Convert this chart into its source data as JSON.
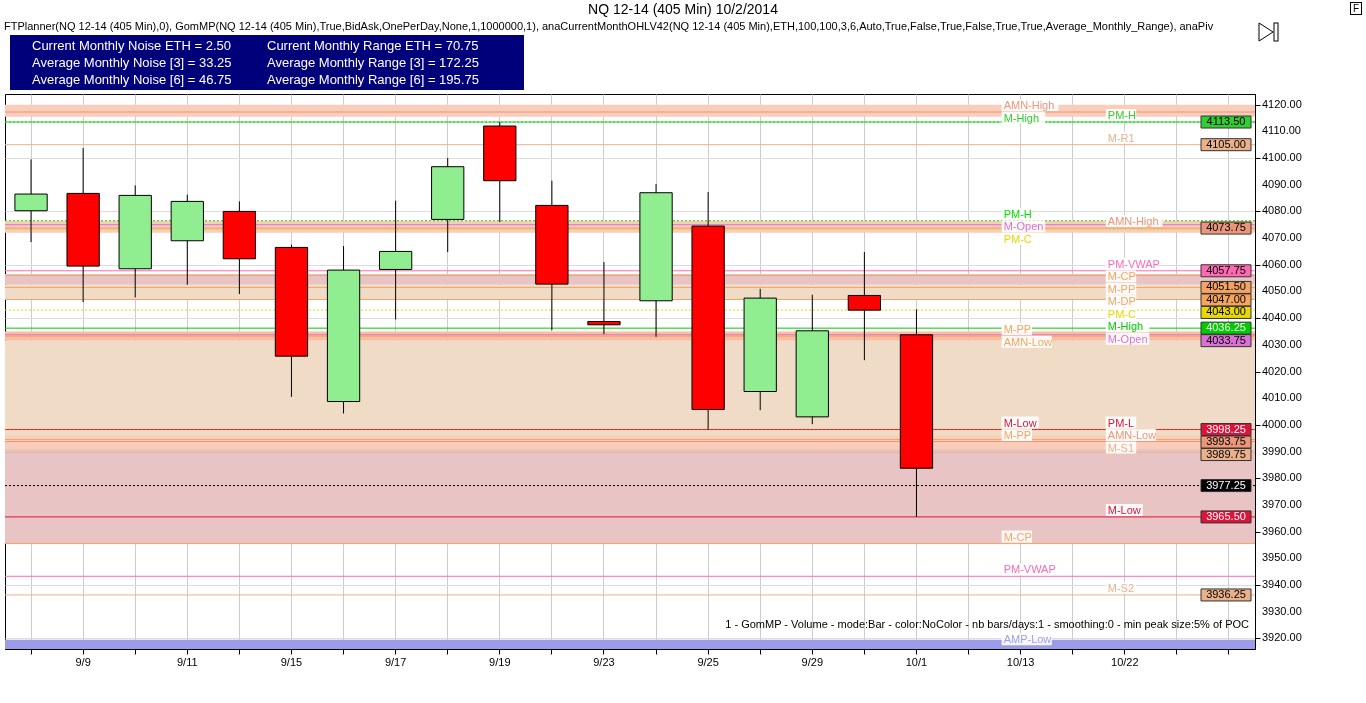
{
  "chart_data": {
    "type": "candlestick",
    "title": "NQ 12-14 (405 Min)  10/2/2014",
    "subtitle": "FTPlanner(NQ 12-14 (405 Min),0), GomMP(NQ 12-14 (405 Min),True,BidAsk,OnePerDay,None,1,1000000,1), anaCurrentMonthOHLV42(NQ 12-14 (405 Min),ETH,100,100,3,6,Auto,True,False,True,False,True,True,Average_Monthly_Range), anaPiv",
    "categories": [
      null,
      "9/9",
      null,
      "9/11",
      null,
      "9/15",
      null,
      "9/17",
      null,
      "9/19",
      null,
      "9/23",
      null,
      "9/25",
      null,
      "9/29",
      null,
      "10/1",
      null,
      "10/13",
      null,
      "10/22",
      null,
      null
    ],
    "ohlc": [
      [
        4080.25,
        4099.5,
        4068.5,
        4086.5
      ],
      [
        4086.75,
        4103.75,
        4046,
        4059.5
      ],
      [
        4058.5,
        4089.75,
        4047.75,
        4086
      ],
      [
        4069,
        4086.25,
        4052.5,
        4083.75
      ],
      [
        4080,
        4083.75,
        4049,
        4062.25
      ],
      [
        4066.5,
        4067.5,
        4010.5,
        4025.75
      ],
      [
        4008.75,
        4067,
        4004.25,
        4058
      ],
      [
        4058.25,
        4084,
        4039.5,
        4065
      ],
      [
        4077,
        4100,
        4064.75,
        4096.75
      ],
      [
        4112,
        4113.5,
        4076,
        4091.5
      ],
      [
        4082.25,
        4091.5,
        4035.5,
        4052.75
      ],
      [
        4038.75,
        4061,
        4034,
        4037.5
      ],
      [
        4046.5,
        4090.25,
        4033,
        4087
      ],
      [
        4074.5,
        4087.25,
        3998.25,
        4005.75
      ],
      [
        4012.5,
        4051,
        4005.5,
        4047.5
      ],
      [
        4003,
        4048.75,
        4000.25,
        4035.25
      ],
      [
        4048.5,
        4064.75,
        4024.25,
        4043
      ],
      [
        4033.75,
        4043.25,
        3965.5,
        3983.75
      ],
      null,
      null,
      null,
      null,
      null,
      null
    ],
    "colors": [
      "#90ee90",
      "#ff0000",
      "#90ee90",
      "#90ee90",
      "#ff0000",
      "#ff0000",
      "#90ee90",
      "#90ee90",
      "#90ee90",
      "#ff0000",
      "#ff0000",
      "#ff0000",
      "#90ee90",
      "#ff0000",
      "#90ee90",
      "#90ee90",
      "#ff0000",
      "#ff0000",
      null,
      null,
      null,
      null,
      null,
      null
    ],
    "ylim": [
      3916,
      4124
    ],
    "yticks": [
      {
        "value": 3920,
        "label": "3920.00"
      },
      {
        "value": 3930,
        "label": "3930.00"
      },
      {
        "value": 3940,
        "label": "3940.00"
      },
      {
        "value": 3950,
        "label": "3950.00"
      },
      {
        "value": 3960,
        "label": "3960.00"
      },
      {
        "value": 3970,
        "label": "3970.00"
      },
      {
        "value": 3980,
        "label": "3980.00"
      },
      {
        "value": 3990,
        "label": "3990.00"
      },
      {
        "value": 4000,
        "label": "4000.00"
      },
      {
        "value": 4010,
        "label": "4010.00"
      },
      {
        "value": 4020,
        "label": "4020.00"
      },
      {
        "value": 4030,
        "label": "4030.00"
      },
      {
        "value": 4040,
        "label": "4040.00"
      },
      {
        "value": 4050,
        "label": "4050.00"
      },
      {
        "value": 4060,
        "label": "4060.00"
      },
      {
        "value": 4070,
        "label": "4070.00"
      },
      {
        "value": 4080,
        "label": "4080.00"
      },
      {
        "value": 4090,
        "label": "4090.00"
      },
      {
        "value": 4100,
        "label": "4100.00"
      },
      {
        "value": 4110,
        "label": "4110.00"
      },
      {
        "value": 4120,
        "label": "4120.00"
      }
    ],
    "grid": true,
    "bands": [
      {
        "axis": "y",
        "from": 4115.5,
        "to": 4120,
        "color": "#f9cdb9"
      },
      {
        "axis": "y",
        "from": 4031.5,
        "to": 4035,
        "color": "#f7bea2"
      },
      {
        "axis": "y",
        "from": 3994.5,
        "to": 4031.5,
        "color": "#f0dcc6"
      },
      {
        "axis": "y",
        "from": 3955.5,
        "to": 3994.5,
        "color": "#e8c4c4"
      },
      {
        "axis": "y",
        "from": 4072,
        "to": 4076.5,
        "color": "#f9cdb9"
      },
      {
        "axis": "y",
        "from": 4052.5,
        "to": 4056.5,
        "color": "#e8c4c4"
      },
      {
        "axis": "y",
        "from": 4047,
        "to": 4052.5,
        "color": "#f0dcc6"
      },
      {
        "axis": "y",
        "from": 3991,
        "to": 3996,
        "color": "#f9cdb9"
      },
      {
        "axis": "y",
        "from": 3916,
        "to": 3919.5,
        "color": "#9c9ce8"
      }
    ],
    "ref_lines": [
      {
        "axis": "y",
        "value": 4117.25,
        "color": "#e9967a",
        "line_style": "solid"
      },
      {
        "axis": "y",
        "value": 4113.5,
        "color": "#32cd32",
        "line_style": "solid"
      },
      {
        "axis": "y",
        "value": 4113.5,
        "color": "#00e000",
        "line_style": "dotted"
      },
      {
        "axis": "y",
        "value": 4105,
        "color": "#eab08a",
        "line_style": "solid"
      },
      {
        "axis": "y",
        "value": 4076.5,
        "color": "#00e000",
        "line_style": "dotted"
      },
      {
        "axis": "y",
        "value": 4075,
        "color": "#da70d6",
        "line_style": "solid"
      },
      {
        "axis": "y",
        "value": 4073.75,
        "color": "#e9967a",
        "line_style": "solid"
      },
      {
        "axis": "y",
        "value": 4073.25,
        "color": "#e6d800",
        "line_style": "dotted"
      },
      {
        "axis": "y",
        "value": 4057.75,
        "color": "#ff69b4",
        "line_style": "solid"
      },
      {
        "axis": "y",
        "value": 4056,
        "color": "#f4a460",
        "line_style": "solid"
      },
      {
        "axis": "y",
        "value": 4051.5,
        "color": "#f4a460",
        "line_style": "solid"
      },
      {
        "axis": "y",
        "value": 4047,
        "color": "#f4a460",
        "line_style": "solid"
      },
      {
        "axis": "y",
        "value": 4043,
        "color": "#e6d800",
        "line_style": "dotted"
      },
      {
        "axis": "y",
        "value": 4036.25,
        "color": "#00cc00",
        "line_style": "solid"
      },
      {
        "axis": "y",
        "value": 4033.75,
        "color": "#da70d6",
        "line_style": "solid"
      },
      {
        "axis": "y",
        "value": 4033.25,
        "color": "#f4a460",
        "line_style": "solid"
      },
      {
        "axis": "y",
        "value": 3998.25,
        "color": "#dc143c",
        "line_style": "solid"
      },
      {
        "axis": "y",
        "value": 3998.25,
        "color": "#ff4500",
        "line_style": "dotted"
      },
      {
        "axis": "y",
        "value": 3994.5,
        "color": "#f4a460",
        "line_style": "solid"
      },
      {
        "axis": "y",
        "value": 3993.75,
        "color": "#e9967a",
        "line_style": "solid"
      },
      {
        "axis": "y",
        "value": 3989.75,
        "color": "#eab08a",
        "line_style": "solid"
      },
      {
        "axis": "y",
        "value": 3977.25,
        "color": "#000000",
        "line_style": "dotted"
      },
      {
        "axis": "y",
        "value": 3965.5,
        "color": "#dc143c",
        "line_style": "solid"
      },
      {
        "axis": "y",
        "value": 3955.5,
        "color": "#f4a460",
        "line_style": "solid"
      },
      {
        "axis": "y",
        "value": 3943.25,
        "color": "#ff69b4",
        "line_style": "solid"
      },
      {
        "axis": "y",
        "value": 3936.25,
        "color": "#eab08a",
        "line_style": "solid"
      }
    ],
    "annotations": [
      "Current Monthly Noise ETH = 2.50",
      "Current Monthly Range ETH = 70.75",
      "Average Monthly Noise [3] = 33.25",
      "Average Monthly Range [3] = 172.25",
      "Average Monthly Noise [6] = 46.75",
      "Average Monthly Range [6] = 195.75",
      "1 - GomMP - Volume - mode:Bar - color:NoColor - nb bars/days:1 - smoothing:0 - min peak size:5% of POC",
      "F",
      {
        "text": "AMN-High",
        "x": "10/13",
        "y": 4117.25
      },
      {
        "text": "M-High",
        "x": "10/13",
        "y": 4113.5
      },
      {
        "text": "PM-H",
        "x": "10/13",
        "y": 4076.5
      },
      {
        "text": "M-Open",
        "x": "10/13",
        "y": 4075
      },
      {
        "text": "PM-C",
        "x": "10/13",
        "y": 4073.25
      },
      {
        "text": "M-PP",
        "x": "10/13",
        "y": 4033.25
      },
      {
        "text": "AMN-Low",
        "x": "10/13",
        "y": 4033.25
      },
      {
        "text": "M-Low",
        "x": "10/13",
        "y": 3998.25
      },
      {
        "text": "M-PP",
        "x": "10/13",
        "y": 3994.5
      },
      {
        "text": "M-CP",
        "x": "10/13",
        "y": 3955.5
      },
      {
        "text": "PM-VWAP",
        "x": "10/13",
        "y": 3943.25
      },
      {
        "text": "AMP-Low",
        "x": "10/13",
        "y": 3917
      },
      {
        "text": "PM-H",
        "x": "10/22",
        "y": 4113.5
      },
      {
        "text": "M-R1",
        "x": "10/22",
        "y": 4105
      },
      {
        "text": "AMN-High",
        "x": "10/22",
        "y": 4073.75
      },
      {
        "text": "PM-VWAP",
        "x": "10/22",
        "y": 4057.75
      },
      {
        "text": "M-CP",
        "x": "10/22",
        "y": 4056
      },
      {
        "text": "M-PP",
        "x": "10/22",
        "y": 4051.5
      },
      {
        "text": "M-DP",
        "x": "10/22",
        "y": 4047
      },
      {
        "text": "PM-C",
        "x": "10/22",
        "y": 4043
      },
      {
        "text": "M-High",
        "x": "10/22",
        "y": 4036.25
      },
      {
        "text": "M-Open",
        "x": "10/22",
        "y": 4033.75
      },
      {
        "text": "PM-L",
        "x": "10/22",
        "y": 3998.25
      },
      {
        "text": "AMN-Low",
        "x": "10/22",
        "y": 3993.75
      },
      {
        "text": "M-S1",
        "x": "10/22",
        "y": 3989.75
      },
      {
        "text": "M-Low",
        "x": "10/22",
        "y": 3965.5
      },
      {
        "text": "M-S2",
        "x": "10/22",
        "y": 3936.25
      },
      {
        "text": "4113.50",
        "y": 4113.5
      },
      {
        "text": "4105.00",
        "y": 4105
      },
      {
        "text": "4073.75",
        "y": 4073.75
      },
      {
        "text": "4057.75",
        "y": 4057.75
      },
      {
        "text": "4051.50",
        "y": 4051.5
      },
      {
        "text": "4047.00",
        "y": 4047
      },
      {
        "text": "4043.00",
        "y": 4043
      },
      {
        "text": "4036.25",
        "y": 4036.25
      },
      {
        "text": "4033.75",
        "y": 4033.75
      },
      {
        "text": "3998.25",
        "y": 3998.25
      },
      {
        "text": "3993.75",
        "y": 3993.75
      },
      {
        "text": "3989.75",
        "y": 3989.75
      },
      {
        "text": "3977.25",
        "y": 3977.25
      },
      {
        "text": "3965.50",
        "y": 3965.5
      },
      {
        "text": "3936.25",
        "y": 3936.25
      }
    ]
  }
}
